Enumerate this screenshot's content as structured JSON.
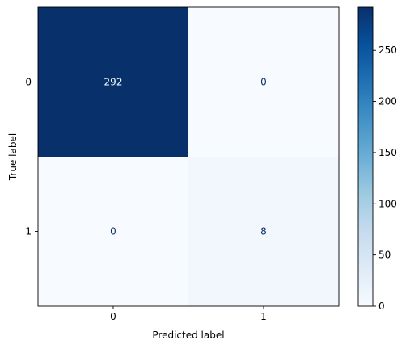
{
  "chart_data": {
    "type": "heatmap",
    "title": "",
    "xlabel": "Predicted label",
    "ylabel": "True label",
    "x_categories": [
      "0",
      "1"
    ],
    "y_categories": [
      "0",
      "1"
    ],
    "values": [
      [
        292,
        0
      ],
      [
        0,
        8
      ]
    ],
    "cell_labels": [
      [
        "292",
        "0"
      ],
      [
        "0",
        "8"
      ]
    ],
    "colormap": "Blues",
    "color_low": "#f7fbff",
    "color_high": "#08306b",
    "colorbar": {
      "range": [
        0,
        292
      ],
      "ticks": [
        0,
        50,
        100,
        150,
        200,
        250
      ],
      "tick_labels": [
        "0",
        "50",
        "100",
        "150",
        "200",
        "250"
      ]
    },
    "grid": false,
    "legend": "colorbar-right"
  }
}
